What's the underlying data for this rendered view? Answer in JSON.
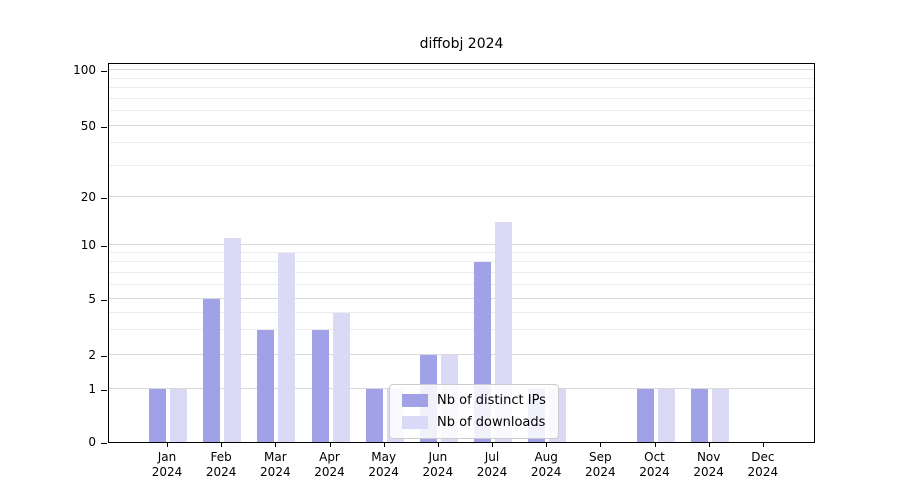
{
  "title": "diffobj 2024",
  "chart_data": {
    "type": "bar",
    "title": "diffobj 2024",
    "xlabel": "",
    "ylabel": "",
    "categories": [
      {
        "month": "Jan",
        "year": "2024"
      },
      {
        "month": "Feb",
        "year": "2024"
      },
      {
        "month": "Mar",
        "year": "2024"
      },
      {
        "month": "Apr",
        "year": "2024"
      },
      {
        "month": "May",
        "year": "2024"
      },
      {
        "month": "Jun",
        "year": "2024"
      },
      {
        "month": "Jul",
        "year": "2024"
      },
      {
        "month": "Aug",
        "year": "2024"
      },
      {
        "month": "Sep",
        "year": "2024"
      },
      {
        "month": "Oct",
        "year": "2024"
      },
      {
        "month": "Nov",
        "year": "2024"
      },
      {
        "month": "Dec",
        "year": "2024"
      }
    ],
    "series": [
      {
        "name": "Nb of distinct IPs",
        "color": "#a1a1e8",
        "values": [
          1,
          5,
          3,
          3,
          1,
          2,
          8,
          1,
          0,
          1,
          1,
          0
        ]
      },
      {
        "name": "Nb of downloads",
        "color": "#dadaf7",
        "values": [
          1,
          11,
          9,
          4,
          1,
          2,
          14,
          1,
          0,
          1,
          1,
          0
        ]
      }
    ],
    "y_axis": {
      "scale": "log",
      "ticks": [
        0,
        1,
        2,
        5,
        10,
        20,
        50,
        100
      ],
      "minor_gridlines": [
        3,
        4,
        6,
        7,
        8,
        9,
        30,
        40,
        60,
        70,
        80,
        90
      ],
      "ylim": [
        0,
        110
      ]
    },
    "grid": "horizontal",
    "legend_position": "inside-lower-center"
  }
}
